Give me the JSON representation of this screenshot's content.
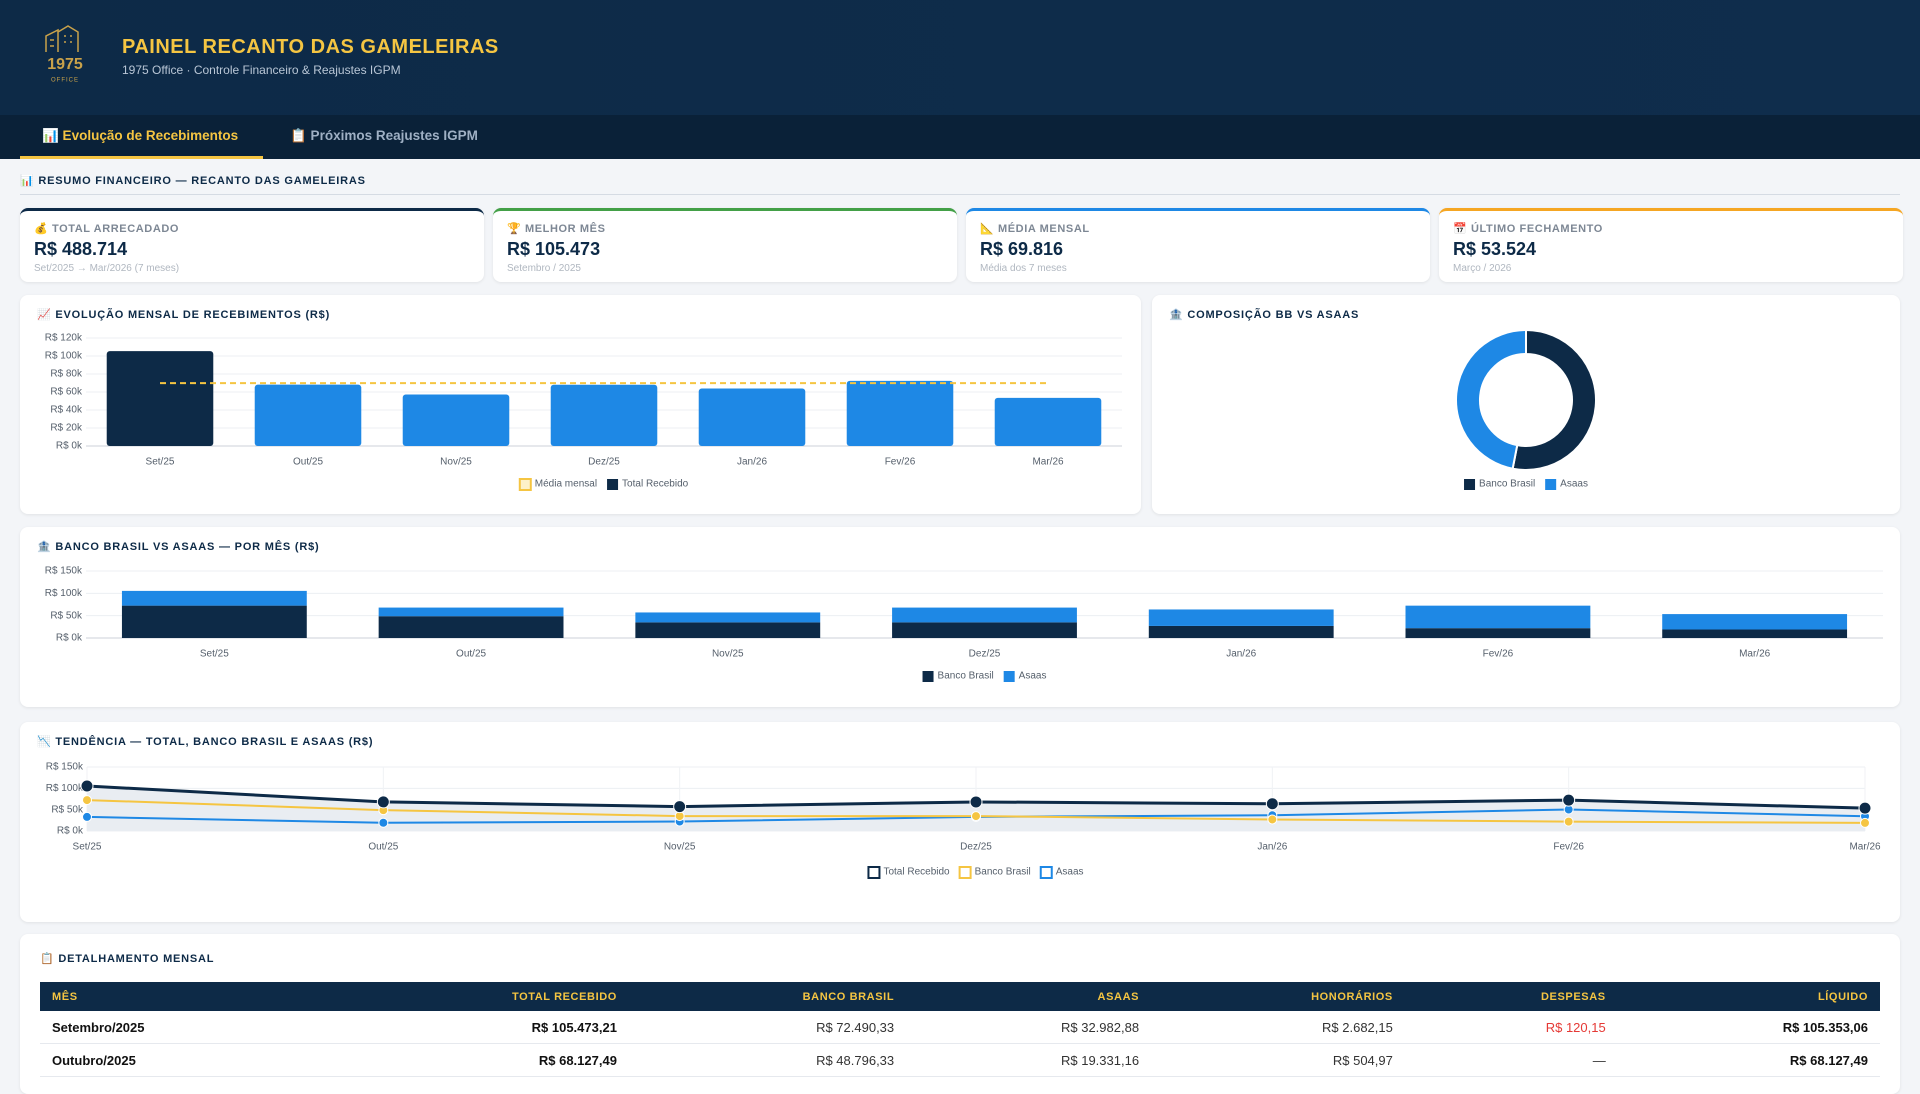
{
  "header": {
    "logo_number": "1975",
    "logo_text": "OFFICE",
    "title": "PAINEL RECANTO DAS GAMELEIRAS",
    "subtitle": "1975 Office · Controle Financeiro & Reajustes IGPM"
  },
  "tabs": [
    "📊 Evolução de Recebimentos",
    "📋 Próximos Reajustes IGPM"
  ],
  "section_title": "📊 RESUMO FINANCEIRO — RECANTO DAS GAMELEIRAS",
  "kpis": [
    {
      "label": "💰 TOTAL ARRECADADO",
      "value": "R$ 488.714",
      "note": "Set/2025 → Mar/2026 (7 meses)"
    },
    {
      "label": "🏆 MELHOR MÊS",
      "value": "R$ 105.473",
      "note": "Setembro / 2025"
    },
    {
      "label": "📐 MÉDIA MENSAL",
      "value": "R$ 69.816",
      "note": "Média dos 7 meses"
    },
    {
      "label": "📅 ÚLTIMO FECHAMENTO",
      "value": "R$ 53.524",
      "note": "Março / 2026"
    }
  ],
  "chart_data": [
    {
      "type": "bar",
      "title": "📈 EVOLUÇÃO MENSAL DE RECEBIMENTOS (R$)",
      "categories": [
        "Set/25",
        "Out/25",
        "Nov/25",
        "Dez/25",
        "Jan/26",
        "Fev/26",
        "Mar/26"
      ],
      "series": [
        {
          "name": "Total Recebido",
          "color": "#0d2a47",
          "values": [
            105473,
            68127,
            57200,
            68100,
            63890,
            72400,
            53524
          ]
        }
      ],
      "bar_colors": [
        "#0d2a47",
        "#1e88e5",
        "#1e88e5",
        "#1e88e5",
        "#1e88e5",
        "#1e88e5",
        "#1e88e5"
      ],
      "average": {
        "name": "Média mensal",
        "value": 69816,
        "color": "#f5c542"
      },
      "ylim": [
        0,
        120000
      ],
      "yticks": [
        {
          "value": 0,
          "label": "R$ 0k"
        },
        {
          "value": 20000,
          "label": "R$ 20k"
        },
        {
          "value": 40000,
          "label": "R$ 40k"
        },
        {
          "value": 60000,
          "label": "R$ 60k"
        },
        {
          "value": 80000,
          "label": "R$ 80k"
        },
        {
          "value": 100000,
          "label": "R$ 100k"
        },
        {
          "value": 120000,
          "label": "R$ 120k"
        }
      ],
      "grid": true
    },
    {
      "type": "pie",
      "title": "🏦 COMPOSIÇÃO BB VS ASAAS",
      "donut": true,
      "categories": [
        "Banco Brasil",
        "Asaas"
      ],
      "values": [
        259286,
        229428
      ],
      "colors": [
        "#0d2a47",
        "#1e88e5"
      ]
    },
    {
      "type": "stacked_bar",
      "title": "🏦 BANCO BRASIL VS ASAAS — POR MÊS (R$)",
      "categories": [
        "Set/25",
        "Out/25",
        "Nov/25",
        "Dez/25",
        "Jan/26",
        "Fev/26",
        "Mar/26"
      ],
      "series": [
        {
          "name": "Banco Brasil",
          "color": "#0d2a47",
          "values": [
            72490,
            48796,
            35000,
            35000,
            27000,
            22000,
            19000
          ]
        },
        {
          "name": "Asaas",
          "color": "#1e88e5",
          "values": [
            32983,
            19331,
            22200,
            33100,
            36890,
            50400,
            34524
          ]
        }
      ],
      "ylim": [
        0,
        150000
      ],
      "yticks": [
        {
          "value": 0,
          "label": "R$ 0k"
        },
        {
          "value": 50000,
          "label": "R$ 50k"
        },
        {
          "value": 100000,
          "label": "R$ 100k"
        },
        {
          "value": 150000,
          "label": "R$ 150k"
        }
      ],
      "grid": true
    },
    {
      "type": "line",
      "title": "📉 TENDÊNCIA — TOTAL, BANCO BRASIL E ASAAS (R$)",
      "categories": [
        "Set/25",
        "Out/25",
        "Nov/25",
        "Dez/25",
        "Jan/26",
        "Fev/26",
        "Mar/26"
      ],
      "series": [
        {
          "name": "Total Recebido",
          "color": "#0d2a47",
          "area_color": "#e9edf2",
          "values": [
            105473,
            68127,
            57200,
            68100,
            63890,
            72400,
            53524
          ]
        },
        {
          "name": "Banco Brasil",
          "color": "#f5c542",
          "values": [
            72490,
            48796,
            35000,
            35000,
            27000,
            22000,
            19000
          ]
        },
        {
          "name": "Asaas",
          "color": "#1e88e5",
          "values": [
            32983,
            19331,
            22200,
            33100,
            36890,
            50400,
            34524
          ]
        }
      ],
      "ylim": [
        0,
        150000
      ],
      "yticks": [
        {
          "value": 0,
          "label": "R$ 0k"
        },
        {
          "value": 50000,
          "label": "R$ 50k"
        },
        {
          "value": 100000,
          "label": "R$ 100k"
        },
        {
          "value": 150000,
          "label": "R$ 150k"
        }
      ],
      "grid": true
    }
  ],
  "table": {
    "title": "📋 DETALHAMENTO MENSAL",
    "columns": [
      "MÊS",
      "TOTAL RECEBIDO",
      "BANCO BRASIL",
      "ASAAS",
      "HONORÁRIOS",
      "DESPESAS",
      "LÍQUIDO"
    ],
    "rows": [
      [
        "Setembro/2025",
        "R$ 105.473,21",
        "R$ 72.490,33",
        "R$ 32.982,88",
        "R$ 2.682,15",
        "R$ 120,15",
        "R$ 105.353,06"
      ],
      [
        "Outubro/2025",
        "R$ 68.127,49",
        "R$ 48.796,33",
        "R$ 19.331,16",
        "R$ 504,97",
        "—",
        "R$ 68.127,49"
      ]
    ]
  }
}
